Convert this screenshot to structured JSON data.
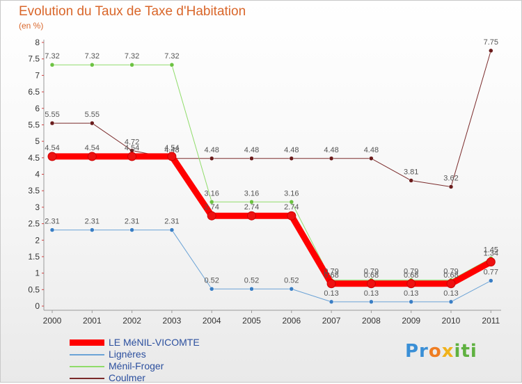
{
  "chart_data": {
    "type": "line",
    "title": "Evolution du Taux de Taxe d'Habitation",
    "subtitle": "(en %)",
    "x": [
      "2000",
      "2001",
      "2002",
      "2003",
      "2004",
      "2005",
      "2006",
      "2007",
      "2008",
      "2009",
      "2010",
      "2011"
    ],
    "ylim": [
      0,
      8
    ],
    "y_ticks": [
      "0",
      "0.5",
      "1",
      "1.5",
      "2",
      "2.5",
      "3",
      "3.5",
      "4",
      "4.5",
      "5",
      "5.5",
      "6",
      "6.5",
      "7",
      "7.5",
      "8"
    ],
    "grid": false,
    "legend_position": "bottom-left",
    "series": [
      {
        "name": "LE MéNIL-VICOMTE",
        "color": "#ff0000",
        "marker_color": "#ee1111",
        "width": 9,
        "values": [
          4.54,
          4.54,
          4.54,
          4.54,
          2.74,
          2.74,
          2.74,
          0.68,
          0.68,
          0.68,
          0.68,
          1.34
        ],
        "labels": [
          "4.54",
          "4.54",
          "4.54",
          "4.54",
          "2.74",
          "2.74",
          "2.74",
          "0.68",
          "0.68",
          "0.68",
          "0.68",
          "1.34"
        ]
      },
      {
        "name": "Lignères",
        "color": "#6ba3d6",
        "marker_color": "#3a7ec4",
        "width": 1,
        "values": [
          2.31,
          2.31,
          2.31,
          2.31,
          0.52,
          0.52,
          0.52,
          0.13,
          0.13,
          0.13,
          0.13,
          0.77
        ],
        "labels": [
          "2.31",
          "2.31",
          "2.31",
          "2.31",
          "0.52",
          "0.52",
          "0.52",
          "0.13",
          "0.13",
          "0.13",
          "0.13",
          "0.77"
        ]
      },
      {
        "name": "Ménil-Froger",
        "color": "#8fdc6a",
        "marker_color": "#6cc242",
        "width": 1,
        "values": [
          7.32,
          7.32,
          7.32,
          7.32,
          3.16,
          3.16,
          3.16,
          0.79,
          0.79,
          0.79,
          0.79,
          1.45
        ],
        "labels": [
          "7.32",
          "7.32",
          "7.32",
          "7.32",
          "3.16",
          "3.16",
          "3.16",
          "0.79",
          "0.79",
          "0.79",
          "0.79",
          "1.45"
        ]
      },
      {
        "name": "Coulmer",
        "color": "#7a2a2a",
        "marker_color": "#6a1c1c",
        "width": 1,
        "values": [
          5.55,
          5.55,
          4.72,
          4.48,
          4.48,
          4.48,
          4.48,
          4.48,
          4.48,
          3.81,
          3.62,
          7.75
        ],
        "labels": [
          "5.55",
          "5.55",
          "4.72",
          "4.48",
          "4.48",
          "4.48",
          "4.48",
          "4.48",
          "4.48",
          "3.81",
          "3.62",
          "7.75"
        ]
      }
    ]
  },
  "legend": {
    "items": [
      {
        "label": "LE MéNIL-VICOMTE",
        "color": "#ff0000"
      },
      {
        "label": "Lignères",
        "color": "#6ba3d6"
      },
      {
        "label": "Ménil-Froger",
        "color": "#8fdc6a"
      },
      {
        "label": "Coulmer",
        "color": "#7a2a2a"
      }
    ]
  },
  "logo": {
    "p1": "Pr",
    "p2": "o",
    "p3": "x",
    "p4": "iti"
  }
}
